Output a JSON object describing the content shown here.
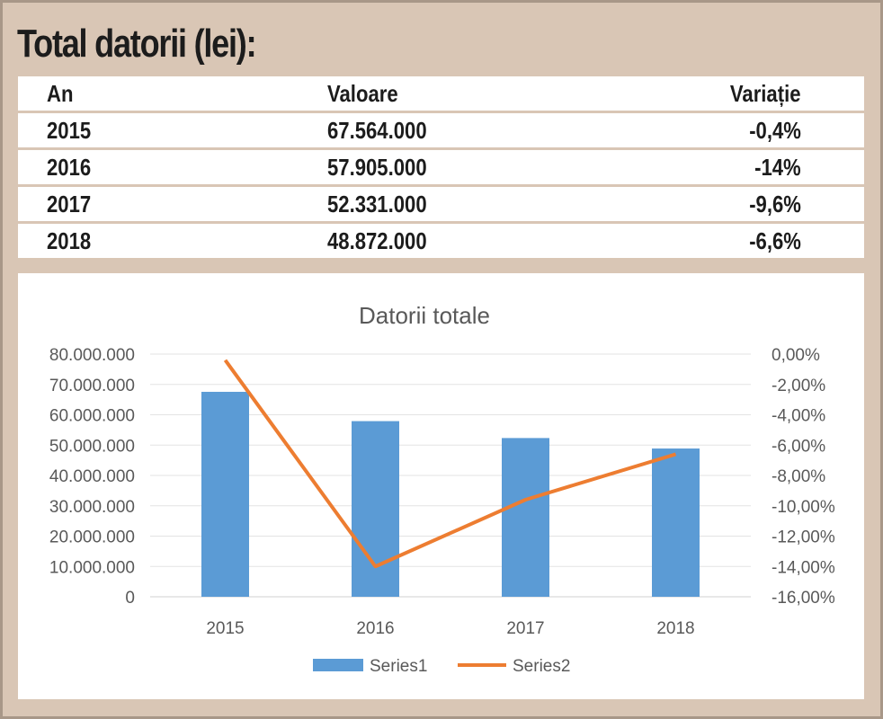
{
  "heading": "Total datorii (lei):",
  "table": {
    "headers": [
      "An",
      "Valoare",
      "Variație"
    ],
    "rows": [
      [
        "2015",
        "67.564.000",
        "-0,4%"
      ],
      [
        "2016",
        "57.905.000",
        "-14%"
      ],
      [
        "2017",
        "52.331.000",
        "-9,6%"
      ],
      [
        "2018",
        "48.872.000",
        "-6,6%"
      ]
    ]
  },
  "chart_data": {
    "type": "bar",
    "title": "Datorii totale",
    "categories": [
      "2015",
      "2016",
      "2017",
      "2018"
    ],
    "series": [
      {
        "name": "Series1",
        "type": "bar",
        "axis": "left",
        "color": "#5b9bd5",
        "values": [
          67564000,
          57905000,
          52331000,
          48872000
        ]
      },
      {
        "name": "Series2",
        "type": "line",
        "axis": "right",
        "color": "#ed7d31",
        "values": [
          -0.4,
          -14,
          -9.6,
          -6.6
        ]
      }
    ],
    "ylim_left": [
      0,
      80000000
    ],
    "yticks_left": [
      "80.000.000",
      "70.000.000",
      "60.000.000",
      "50.000.000",
      "40.000.000",
      "30.000.000",
      "20.000.000",
      "10.000.000",
      "0"
    ],
    "ylim_right": [
      -16,
      0
    ],
    "yticks_right": [
      "0,00%",
      "-2,00%",
      "-4,00%",
      "-6,00%",
      "-8,00%",
      "-10,00%",
      "-12,00%",
      "-14,00%",
      "-16,00%"
    ],
    "grid": true,
    "legend_position": "bottom"
  }
}
